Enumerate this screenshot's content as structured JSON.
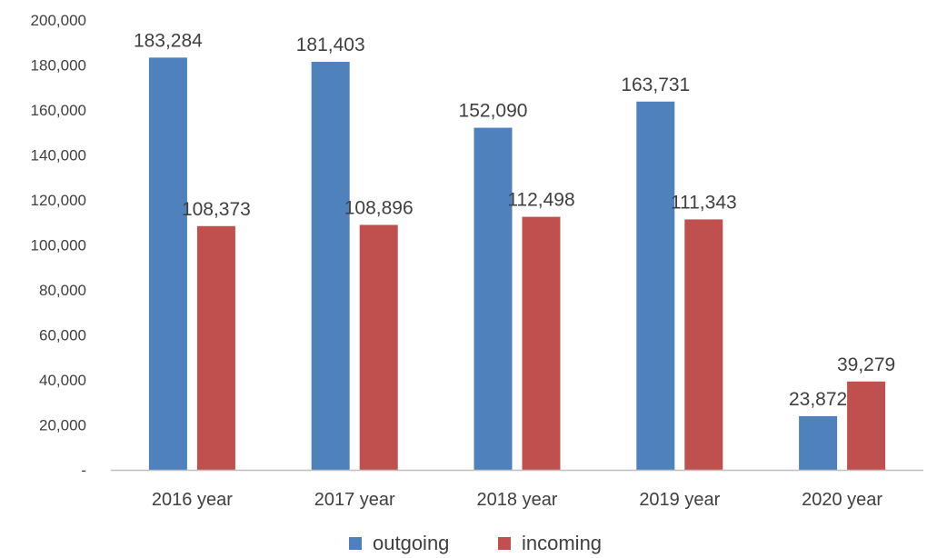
{
  "chart_data": {
    "type": "bar",
    "categories": [
      "2016 year",
      "2017 year",
      "2018 year",
      "2019 year",
      "2020 year"
    ],
    "series": [
      {
        "name": "outgoing",
        "color": "#4f81bd",
        "values": [
          183284,
          181403,
          152090,
          163731,
          23872
        ]
      },
      {
        "name": "incoming",
        "color": "#c0504d",
        "values": [
          108373,
          108896,
          112498,
          111343,
          39279
        ]
      }
    ],
    "data_labels": [
      [
        "183,284",
        "181,403",
        "152,090",
        "163,731",
        "23,872"
      ],
      [
        "108,373",
        "108,896",
        "112,498",
        "111,343",
        "39,279"
      ]
    ],
    "ylim": [
      0,
      200000
    ],
    "yticks": [
      0,
      20000,
      40000,
      60000,
      80000,
      100000,
      120000,
      140000,
      160000,
      180000,
      200000
    ],
    "ytick_labels": [
      "-",
      "20,000",
      "40,000",
      "60,000",
      "80,000",
      "100,000",
      "120,000",
      "140,000",
      "160,000",
      "180,000",
      "200,000"
    ],
    "grid": false,
    "legend": "bottom",
    "axis_color": "#bfbfbf"
  }
}
